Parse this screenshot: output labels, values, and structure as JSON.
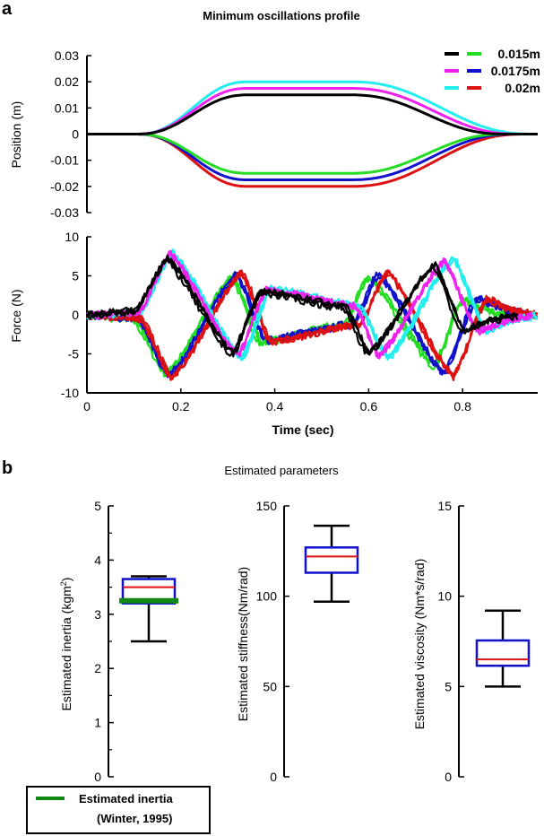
{
  "panel_labels": {
    "a": "a",
    "b": "b"
  },
  "chart_data": [
    {
      "id": "position",
      "type": "line",
      "title": "Minimum oscillations profile",
      "xlabel": "",
      "ylabel": "Position (m)",
      "xlim": [
        0,
        0.96
      ],
      "ylim": [
        -0.03,
        0.03
      ],
      "yticks": [
        "0.03",
        "0.02",
        "0.01",
        "0",
        "-0.01",
        "-0.02",
        "-0.03"
      ],
      "ytick_values": [
        0.03,
        0.02,
        0.01,
        0,
        -0.01,
        -0.02,
        -0.03
      ],
      "profile": {
        "start": 0.1,
        "rise_end": 0.35,
        "fall_start": 0.55,
        "end": 0.9
      },
      "series": [
        {
          "name": "0.015m",
          "up_color": "#000000",
          "down_color": "#22dd22",
          "amplitude": 0.015,
          "up_end": 0.9,
          "down_end": 0.9
        },
        {
          "name": "0.0175m",
          "up_color": "#ee22ee",
          "down_color": "#1111cc",
          "amplitude": 0.0175,
          "up_end": 0.93,
          "down_end": 0.92
        },
        {
          "name": "0.02m",
          "up_color": "#22eeee",
          "down_color": "#dd1111",
          "amplitude": 0.02,
          "up_end": 0.96,
          "down_end": 0.94
        }
      ],
      "legend": {
        "position": "top-right",
        "entries": [
          "0.015m",
          "0.0175m",
          "0.02m"
        ]
      }
    },
    {
      "id": "force",
      "type": "line",
      "xlabel": "Time (sec)",
      "ylabel": "Force (N)",
      "xlim": [
        0,
        0.96
      ],
      "ylim": [
        -10,
        10
      ],
      "xticks": [
        "0",
        "0.2",
        "0.4",
        "0.6",
        "0.8"
      ],
      "xtick_values": [
        0,
        0.2,
        0.4,
        0.6,
        0.8
      ],
      "yticks": [
        "10",
        "5",
        "0",
        "-5",
        "-10"
      ],
      "ytick_values": [
        10,
        5,
        0,
        -5,
        -10
      ],
      "series": [
        {
          "name": "0.015m up",
          "color": "#000000",
          "x": [
            0,
            0.1,
            0.17,
            0.31,
            0.37,
            0.55,
            0.6,
            0.74,
            0.8,
            0.87,
            0.92
          ],
          "y": [
            0,
            0.5,
            7.2,
            -5.0,
            3.0,
            1.0,
            -5.0,
            6.5,
            -2.0,
            -0.5,
            0
          ]
        },
        {
          "name": "0.015m down",
          "color": "#22dd22",
          "x": [
            0,
            0.1,
            0.17,
            0.31,
            0.37,
            0.55,
            0.6,
            0.74,
            0.8,
            0.87,
            0.92
          ],
          "y": [
            0,
            -0.5,
            -7.5,
            5.0,
            -3.5,
            -1.0,
            5.0,
            -6.5,
            2.0,
            0.5,
            0
          ]
        },
        {
          "name": "0.0175m up",
          "color": "#ee22ee",
          "x": [
            0,
            0.11,
            0.175,
            0.32,
            0.38,
            0.57,
            0.62,
            0.76,
            0.83,
            0.9,
            0.95
          ],
          "y": [
            0,
            0.5,
            8.0,
            -5.2,
            3.3,
            1.2,
            -5.2,
            7.0,
            -2.0,
            -0.5,
            0
          ]
        },
        {
          "name": "0.0175m down",
          "color": "#1111cc",
          "x": [
            0,
            0.11,
            0.175,
            0.32,
            0.38,
            0.57,
            0.62,
            0.76,
            0.83,
            0.9,
            0.95
          ],
          "y": [
            0,
            -0.5,
            -8.0,
            5.2,
            -3.3,
            -1.2,
            5.2,
            -7.5,
            2.0,
            0.5,
            0
          ]
        },
        {
          "name": "0.02m up",
          "color": "#22eeee",
          "x": [
            0,
            0.115,
            0.18,
            0.33,
            0.39,
            0.58,
            0.64,
            0.78,
            0.85,
            0.91,
            0.96
          ],
          "y": [
            0,
            0.5,
            8.2,
            -5.5,
            3.5,
            1.2,
            -5.5,
            7.5,
            -2.0,
            -0.5,
            0
          ]
        },
        {
          "name": "0.02m down",
          "color": "#dd1111",
          "x": [
            0,
            0.115,
            0.18,
            0.33,
            0.39,
            0.58,
            0.64,
            0.78,
            0.85,
            0.91,
            0.96
          ],
          "y": [
            0,
            -0.5,
            -8.2,
            5.5,
            -3.5,
            -1.2,
            5.5,
            -8.0,
            2.0,
            0.5,
            0
          ]
        }
      ]
    },
    {
      "id": "inertia",
      "type": "box",
      "title": "Estimated parameters",
      "ylabel": "Estimated inertia (kgm",
      "ylabel_sup": "2",
      "ylabel_close": ")",
      "ylim": [
        0,
        5
      ],
      "yticks": [
        "5",
        "4",
        "3",
        "2",
        "1",
        "0"
      ],
      "ytick_values": [
        5,
        4,
        3,
        2,
        1,
        0
      ],
      "minor_ticks": [
        0.5,
        1.5,
        2.5,
        3.5,
        4.5
      ],
      "box": {
        "whisker_low": 2.5,
        "q1": 3.2,
        "median": 3.5,
        "q3": 3.65,
        "whisker_high": 3.7
      },
      "reference_line": {
        "value": 3.25,
        "color": "#118811"
      }
    },
    {
      "id": "stiffness",
      "type": "box",
      "ylabel": "Estimated stiffness(Nm/rad)",
      "ylim": [
        0,
        150
      ],
      "yticks": [
        "150",
        "100",
        "50",
        "0"
      ],
      "ytick_values": [
        150,
        100,
        50,
        0
      ],
      "minor_ticks": [],
      "box": {
        "whisker_low": 97,
        "q1": 113,
        "median": 122,
        "q3": 127,
        "whisker_high": 139
      }
    },
    {
      "id": "viscosity",
      "type": "box",
      "ylabel": "Estimated viscosity (Nm*s/rad)",
      "ylim": [
        0,
        15
      ],
      "yticks": [
        "15",
        "10",
        "5",
        "0"
      ],
      "ytick_values": [
        15,
        10,
        5,
        0
      ],
      "minor_ticks": [],
      "box": {
        "whisker_low": 5,
        "q1": 6.15,
        "median": 6.5,
        "q3": 7.55,
        "whisker_high": 9.2
      }
    }
  ],
  "legend_b": {
    "label_line1": "Estimated inertia",
    "label_line2": "(Winter, 1995)",
    "color": "#118811"
  },
  "colors": {
    "axis": "#000000",
    "box": "#1111cc",
    "median": "#dd1111",
    "whisker": "#000000"
  }
}
